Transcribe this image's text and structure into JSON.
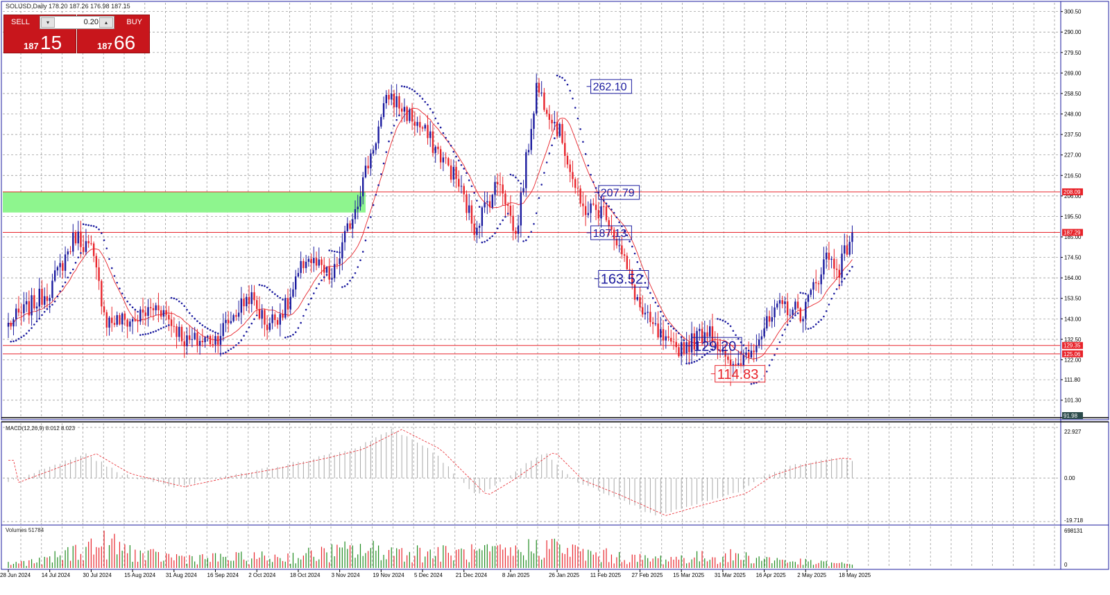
{
  "header": {
    "symbol_info": "SOLUSD,Daily  178.20 187.26 176.98 187.15"
  },
  "trade_panel": {
    "sell_label": "SELL",
    "buy_label": "BUY",
    "volume": "0.20",
    "sell_price_prefix": "187",
    "sell_price_big": "15",
    "buy_price_prefix": "187",
    "buy_price_big": "66"
  },
  "colors": {
    "bull": "#1a1a9e",
    "bear": "#e8232a",
    "sar": "#1a1a9e",
    "ma": "#e8232a",
    "grid": "#8c8c8c",
    "zone": "#8ef58e",
    "hline": "#e8232a",
    "axis_border": "#1a1a9e"
  },
  "chart_data": [
    {
      "type": "candlestick",
      "panel": "price",
      "indicators": [
        "parabolic-sar",
        "moving-average"
      ],
      "y_range": [
        91.98,
        305.0
      ],
      "y_ticks": [
        "300.50",
        "290.00",
        "279.50",
        "269.00",
        "258.50",
        "248.00",
        "237.50",
        "227.00",
        "216.50",
        "206.00",
        "195.50",
        "185.00",
        "174.50",
        "164.00",
        "153.50",
        "143.00",
        "132.50",
        "122.00",
        "111.80",
        "101.30"
      ],
      "x_ticks": [
        "28 Jun 2024",
        "14 Jul 2024",
        "30 Jul 2024",
        "15 Aug 2024",
        "31 Aug 2024",
        "16 Sep 2024",
        "2 Oct 2024",
        "18 Oct 2024",
        "3 Nov 2024",
        "19 Nov 2024",
        "5 Dec 2024",
        "21 Dec 2024",
        "8 Jan 2025",
        "26 Jan 2025",
        "11 Feb 2025",
        "27 Feb 2025",
        "15 Mar 2025",
        "31 Mar 2025",
        "16 Apr 2025",
        "2 May 2025",
        "18 May 2025"
      ],
      "close_path": [
        {
          "d": "28 Jun 2024",
          "c": 140
        },
        {
          "d": "14 Jul 2024",
          "c": 158
        },
        {
          "d": "24 Jul 2024",
          "c": 186
        },
        {
          "d": "30 Jul 2024",
          "c": 178
        },
        {
          "d": "5 Aug 2024",
          "c": 142
        },
        {
          "d": "15 Aug 2024",
          "c": 142
        },
        {
          "d": "25 Aug 2024",
          "c": 150
        },
        {
          "d": "5 Sep 2024",
          "c": 131
        },
        {
          "d": "16 Sep 2024",
          "c": 133
        },
        {
          "d": "29 Sep 2024",
          "c": 155
        },
        {
          "d": "6 Oct 2024",
          "c": 140
        },
        {
          "d": "14 Oct 2024",
          "c": 150
        },
        {
          "d": "21 Oct 2024",
          "c": 175
        },
        {
          "d": "31 Oct 2024",
          "c": 163
        },
        {
          "d": "10 Nov 2024",
          "c": 205
        },
        {
          "d": "19 Nov 2024",
          "c": 245
        },
        {
          "d": "22 Nov 2024",
          "c": 258
        },
        {
          "d": "5 Dec 2024",
          "c": 240
        },
        {
          "d": "18 Dec 2024",
          "c": 215
        },
        {
          "d": "25 Dec 2024",
          "c": 190
        },
        {
          "d": "4 Jan 2025",
          "c": 215
        },
        {
          "d": "10 Jan 2025",
          "c": 185
        },
        {
          "d": "18 Jan 2025",
          "c": 262
        },
        {
          "d": "23 Jan 2025",
          "c": 250
        },
        {
          "d": "28 Jan 2025",
          "c": 235
        },
        {
          "d": "4 Feb 2025",
          "c": 200
        },
        {
          "d": "14 Feb 2025",
          "c": 198
        },
        {
          "d": "22 Feb 2025",
          "c": 168
        },
        {
          "d": "28 Feb 2025",
          "c": 145
        },
        {
          "d": "11 Mar 2025",
          "c": 127
        },
        {
          "d": "19 Mar 2025",
          "c": 131
        },
        {
          "d": "26 Mar 2025",
          "c": 139
        },
        {
          "d": "3 Apr 2025",
          "c": 114.83
        },
        {
          "d": "11 Apr 2025",
          "c": 129
        },
        {
          "d": "23 Apr 2025",
          "c": 150
        },
        {
          "d": "1 May 2025",
          "c": 146
        },
        {
          "d": "10 May 2025",
          "c": 175
        },
        {
          "d": "15 May 2025",
          "c": 169
        },
        {
          "d": "20 May 2025",
          "c": 187.15
        }
      ],
      "horizontal_lines": [
        208.09,
        187.29,
        129.35,
        125.06
      ],
      "price_labels": [
        "208.09",
        "187.29",
        "129.35",
        "125.06",
        "91.98"
      ],
      "zone": {
        "from": 197.5,
        "to": 208.0,
        "end_date": "13 Nov 2024"
      },
      "annotations": [
        {
          "text": "262.10",
          "value": 262.1,
          "date": "8 Feb 2025",
          "style": "blue"
        },
        {
          "text": "207.79",
          "value": 207.79,
          "date": "11 Feb 2025",
          "style": "blue"
        },
        {
          "text": "187.13",
          "value": 187.13,
          "date": "8 Feb 2025",
          "style": "blue"
        },
        {
          "text": "163.52",
          "value": 163.52,
          "date": "11 Feb 2025",
          "style": "blue-large"
        },
        {
          "text": "129.20",
          "value": 129.2,
          "date": "19 Mar 2025",
          "style": "blue-large"
        },
        {
          "text": "114.83",
          "value": 114.83,
          "date": "28 Mar 2025",
          "style": "red-large"
        }
      ]
    },
    {
      "type": "bar",
      "panel": "macd",
      "title": "MACD(12,26,9) 8.012 8.023",
      "y_ticks": [
        "22.927",
        "0.00",
        "-19.718"
      ],
      "y_range": [
        -19.718,
        22.927
      ],
      "histogram": [
        {
          "d": "28 Jun 2024",
          "v": -2
        },
        {
          "d": "14 Jul 2024",
          "v": 5
        },
        {
          "d": "28 Jul 2024",
          "v": 11
        },
        {
          "d": "10 Aug 2024",
          "v": 2
        },
        {
          "d": "31 Aug 2024",
          "v": -4
        },
        {
          "d": "20 Sep 2024",
          "v": 1
        },
        {
          "d": "5 Oct 2024",
          "v": 4
        },
        {
          "d": "25 Oct 2024",
          "v": 9
        },
        {
          "d": "8 Nov 2024",
          "v": 13
        },
        {
          "d": "23 Nov 2024",
          "v": 22
        },
        {
          "d": "8 Dec 2024",
          "v": 13
        },
        {
          "d": "26 Dec 2024",
          "v": -8
        },
        {
          "d": "5 Jan 2025",
          "v": -1
        },
        {
          "d": "21 Jan 2025",
          "v": 12
        },
        {
          "d": "1 Feb 2025",
          "v": -1
        },
        {
          "d": "16 Feb 2025",
          "v": -8
        },
        {
          "d": "5 Mar 2025",
          "v": -17
        },
        {
          "d": "20 Mar 2025",
          "v": -12
        },
        {
          "d": "5 Apr 2025",
          "v": -7
        },
        {
          "d": "15 Apr 2025",
          "v": 1
        },
        {
          "d": "28 Apr 2025",
          "v": 6
        },
        {
          "d": "12 May 2025",
          "v": 9
        },
        {
          "d": "20 May 2025",
          "v": 8.0
        }
      ]
    },
    {
      "type": "bar",
      "panel": "volume",
      "title": "Volumes 51784",
      "y_ticks": [
        "698131",
        "0"
      ],
      "y_range": [
        0,
        698131
      ],
      "profile": [
        {
          "d": "28 Jun 2024",
          "v": 90000
        },
        {
          "d": "12 Jul 2024",
          "v": 150000
        },
        {
          "d": "28 Jul 2024",
          "v": 420000
        },
        {
          "d": "5 Aug 2024",
          "v": 500000
        },
        {
          "d": "20 Aug 2024",
          "v": 250000
        },
        {
          "d": "15 Sep 2024",
          "v": 200000
        },
        {
          "d": "15 Oct 2024",
          "v": 230000
        },
        {
          "d": "10 Nov 2024",
          "v": 380000
        },
        {
          "d": "22 Nov 2024",
          "v": 350000
        },
        {
          "d": "15 Dec 2024",
          "v": 300000
        },
        {
          "d": "10 Jan 2025",
          "v": 330000
        },
        {
          "d": "22 Jan 2025",
          "v": 480000
        },
        {
          "d": "5 Feb 2025",
          "v": 300000
        },
        {
          "d": "1 Mar 2025",
          "v": 180000
        },
        {
          "d": "5 Apr 2025",
          "v": 250000
        },
        {
          "d": "1 May 2025",
          "v": 120000
        },
        {
          "d": "20 May 2025",
          "v": 70000
        }
      ]
    }
  ]
}
